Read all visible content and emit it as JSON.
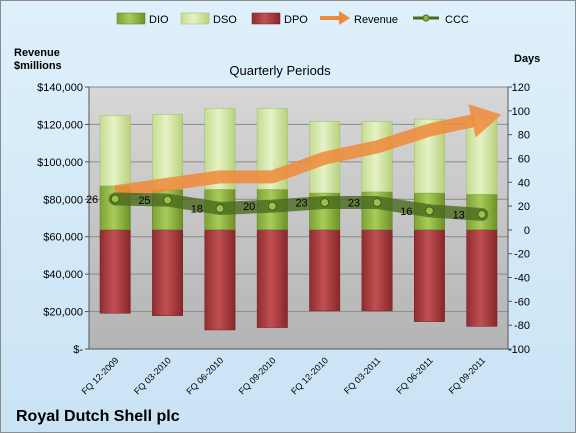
{
  "chart_data": {
    "type": "bar",
    "title": "Quarterly Periods",
    "company": "Royal Dutch Shell plc",
    "categories": [
      "FQ 12-2009",
      "FQ 03-2010",
      "FQ 06-2010",
      "FQ 09-2010",
      "FQ 12-2010",
      "FQ 03-2011",
      "FQ 06-2011",
      "FQ 09-2011"
    ],
    "left_axis": {
      "label_line1": "Revenue",
      "label_line2": "$millions",
      "ylim": [
        0,
        140000
      ],
      "ticks": [
        0,
        20000,
        40000,
        60000,
        80000,
        100000,
        120000,
        140000
      ],
      "tick_labels": [
        "$-",
        "$20,000",
        "$40,000",
        "$60,000",
        "$80,000",
        "$100,000",
        "$120,000",
        "$140,000"
      ]
    },
    "right_axis": {
      "label": "Days",
      "ylim": [
        -100,
        120
      ],
      "ticks": [
        -100,
        -80,
        -60,
        -40,
        -20,
        0,
        20,
        40,
        60,
        80,
        100,
        120
      ],
      "tick_labels": [
        "-100",
        "-80",
        "-60",
        "-40",
        "-20",
        "0",
        "20",
        "40",
        "60",
        "80",
        "100",
        "120"
      ]
    },
    "series": [
      {
        "name": "DIO",
        "axis": "right",
        "values": [
          37,
          34,
          34,
          34,
          31,
          32,
          31,
          30
        ],
        "color": "#8db440"
      },
      {
        "name": "DSO",
        "axis": "right",
        "values": [
          59,
          63,
          68,
          68,
          60,
          59,
          62,
          64
        ],
        "color": "#d3e6a6"
      },
      {
        "name": "DPO",
        "axis": "right",
        "values": [
          -70,
          -72,
          -84,
          -82,
          -68,
          -68,
          -77,
          -81
        ],
        "color": "#a43a3d"
      },
      {
        "name": "Revenue",
        "axis": "left",
        "values": [
          84000,
          88000,
          92000,
          92000,
          102000,
          108000,
          117000,
          123000
        ],
        "color": "#ee8a3a"
      },
      {
        "name": "CCC",
        "axis": "right",
        "values": [
          26,
          25,
          18,
          20,
          23,
          23,
          16,
          13
        ],
        "color": "#4a6a1e"
      }
    ],
    "ccc_labels": [
      "26",
      "25",
      "18",
      "20",
      "23",
      "23",
      "16",
      "13"
    ],
    "grid": true,
    "legend_position": "top"
  }
}
